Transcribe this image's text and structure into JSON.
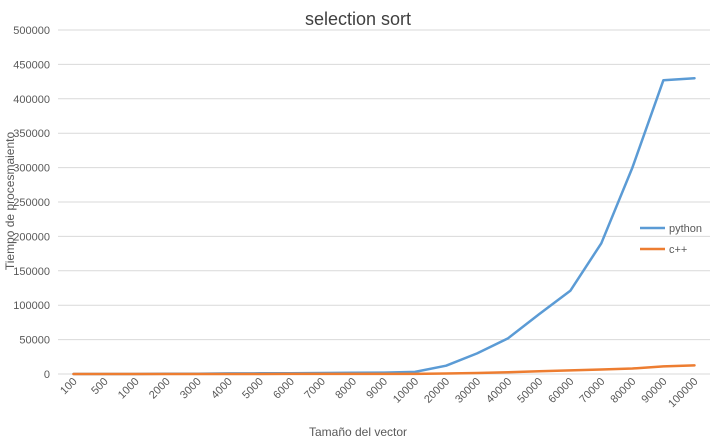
{
  "chart_data": {
    "type": "line",
    "title": "selection sort",
    "xlabel": "Tamaño del vector",
    "ylabel": "Tiempo de procesmaiento",
    "categories": [
      "100",
      "500",
      "1000",
      "2000",
      "3000",
      "4000",
      "5000",
      "6000",
      "7000",
      "8000",
      "9000",
      "10000",
      "20000",
      "30000",
      "40000",
      "50000",
      "60000",
      "70000",
      "80000",
      "90000",
      "100000"
    ],
    "ylim": [
      0,
      500000
    ],
    "yticks": [
      "0",
      "50000",
      "100000",
      "150000",
      "200000",
      "250000",
      "300000",
      "350000",
      "400000",
      "450000",
      "500000"
    ],
    "grid": true,
    "legend_position": "right",
    "series": [
      {
        "name": "python",
        "color": "#5B9BD5",
        "values": [
          10,
          30,
          70,
          250,
          500,
          800,
          1000,
          1200,
          1500,
          1800,
          2000,
          3000,
          12000,
          30000,
          52000,
          87000,
          121000,
          190000,
          300000,
          427000,
          430000
        ]
      },
      {
        "name": "c++",
        "color": "#ED7D31",
        "values": [
          0,
          0,
          5,
          10,
          20,
          40,
          60,
          80,
          100,
          120,
          150,
          200,
          700,
          1500,
          2600,
          4000,
          5300,
          6600,
          8000,
          11000,
          12500
        ]
      }
    ]
  }
}
